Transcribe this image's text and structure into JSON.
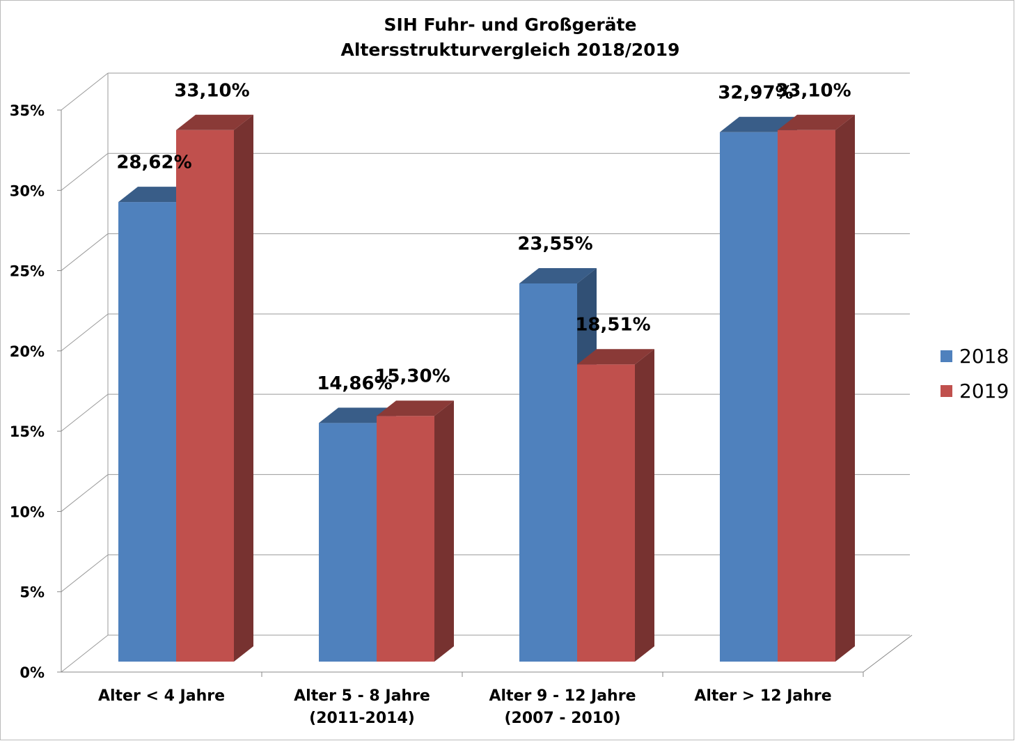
{
  "chart_data": {
    "type": "bar3d",
    "title": "SIH Fuhr- und Großgeräte",
    "subtitle": "Altersstrukturvergleich 2018/2019",
    "categories": [
      "Alter < 4 Jahre",
      "Alter 5 - 8 Jahre (2011-2014)",
      "Alter 9 - 12 Jahre (2007 - 2010)",
      "Alter > 12 Jahre"
    ],
    "series": [
      {
        "name": "2018",
        "color": "#4f81bd",
        "values": [
          28.62,
          14.86,
          23.55,
          32.97
        ],
        "value_labels": [
          "28,62%",
          "14,86%",
          "23,55%",
          "32,97%"
        ]
      },
      {
        "name": "2019",
        "color": "#c0504d",
        "values": [
          33.1,
          15.3,
          18.51,
          33.1
        ],
        "value_labels": [
          "33,10%",
          "15,30%",
          "18,51%",
          "33,10%"
        ]
      }
    ],
    "ylim": [
      0,
      35
    ],
    "yticks": [
      {
        "value": 0,
        "label": "0%"
      },
      {
        "value": 5,
        "label": "5%"
      },
      {
        "value": 10,
        "label": "10%"
      },
      {
        "value": 15,
        "label": "15%"
      },
      {
        "value": 20,
        "label": "20%"
      },
      {
        "value": 25,
        "label": "25%"
      },
      {
        "value": 30,
        "label": "30%"
      },
      {
        "value": 35,
        "label": "35%"
      }
    ],
    "grid": true,
    "legend": "right"
  }
}
